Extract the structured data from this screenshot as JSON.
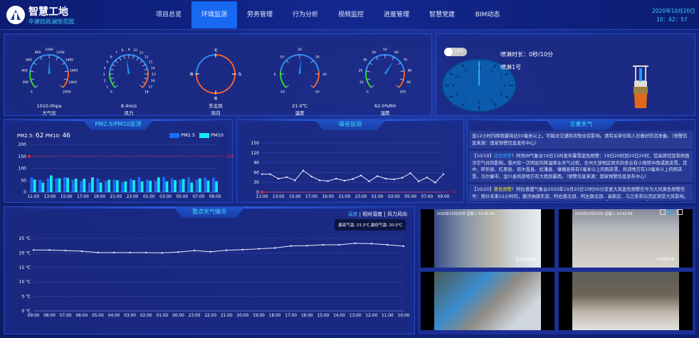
{
  "header": {
    "title": "智慧工地",
    "subtitle": "中建四局澜悦花园",
    "date": "2020年10月20日",
    "time": "10：42：57",
    "nav": [
      {
        "label": "项目总览"
      },
      {
        "label": "环境监测",
        "active": true
      },
      {
        "label": "劳务管理"
      },
      {
        "label": "行为分析"
      },
      {
        "label": "视频监控"
      },
      {
        "label": "进度管理"
      },
      {
        "label": "智慧党建"
      },
      {
        "label": "BIM动态"
      }
    ]
  },
  "gauges": [
    {
      "value_text": "1010.0hpa",
      "label": "大气压",
      "min": 0,
      "max": 2000,
      "value": 1010,
      "ticks": [
        "0",
        "200",
        "400",
        "600",
        "800",
        "1000",
        "1200",
        "1400",
        "1600",
        "1800",
        "2000"
      ]
    },
    {
      "value_text": "8.4m/s",
      "label": "风力",
      "min": 0,
      "max": 18,
      "value": 8.4,
      "ticks": [
        "0",
        "1",
        "2",
        "3",
        "4",
        "5",
        "6",
        "7",
        "8",
        "9",
        "10",
        "11",
        "12",
        "13",
        "14",
        "15",
        "16",
        "17",
        "18"
      ]
    },
    {
      "value_text": "东北风",
      "label": "风向",
      "compass": true,
      "value": 45,
      "ticks": [
        "北",
        "东",
        "南",
        "西"
      ]
    },
    {
      "value_text": "21.0℃",
      "label": "温度",
      "min": -10,
      "max": 50,
      "value": 21,
      "ticks": [
        "-10",
        "0",
        "10",
        "20",
        "30",
        "40",
        "50"
      ]
    },
    {
      "value_text": "62.0%RH",
      "label": "湿度",
      "min": 0,
      "max": 100,
      "value": 62,
      "ticks": [
        "0",
        "10",
        "20",
        "30",
        "40",
        "50",
        "60",
        "70",
        "80",
        "90",
        "100"
      ]
    }
  ],
  "gauge_colors": {
    "low": "#2bd92b",
    "mid": "#2f8cf0",
    "high": "#f0602a",
    "needle": "#1e8fff"
  },
  "sprinkler": {
    "toggle": "OFF",
    "duration": "喷淋时长：0秒/10分",
    "name": "喷淋1号",
    "dial_ticks": [
      "12",
      "1",
      "2",
      "3",
      "4",
      "5",
      "6",
      "7",
      "8",
      "9",
      "10",
      "11"
    ]
  },
  "pm": {
    "title": "PM2.5/PM10监测",
    "readout_pm25_label": "PM2.5:",
    "readout_pm25": "62",
    "readout_pm10_label": "PM10:",
    "readout_pm10": "46",
    "chart_data": {
      "type": "bar",
      "categories": [
        "11:00",
        "12:00",
        "13:00",
        "14:00",
        "15:00",
        "16:00",
        "17:00",
        "18:00",
        "19:00",
        "20:00",
        "21:00",
        "22:00",
        "23:00",
        "00:00",
        "01:00",
        "02:00",
        "03:00",
        "04:00",
        "05:00",
        "06:00",
        "07:00",
        "08:00",
        "09:00"
      ],
      "tick_labels": [
        "11:00",
        "13:00",
        "15:00",
        "17:00",
        "19:00",
        "21:00",
        "23:00",
        "01:00",
        "03:00",
        "05:00",
        "07:00",
        "09:00"
      ],
      "series": [
        {
          "name": "PM2.5",
          "color": "#1a6cf5",
          "values": [
            62,
            50,
            58,
            58,
            63,
            52,
            45,
            40,
            58,
            46,
            52,
            42,
            55,
            63,
            52,
            46,
            64,
            58,
            52,
            62,
            52,
            61,
            61
          ]
        },
        {
          "name": "PM10",
          "color": "#13eaf5",
          "values": [
            53,
            40,
            70,
            58,
            60,
            57,
            56,
            62,
            40,
            52,
            50,
            45,
            50,
            45,
            47,
            62,
            45,
            50,
            55,
            40,
            58,
            48,
            45
          ]
        }
      ],
      "ylim": [
        0,
        200
      ],
      "yticks": [
        0,
        50,
        100,
        150,
        200
      ],
      "threshold": 150,
      "threshold_label": "150",
      "legend": "top-right"
    }
  },
  "noise": {
    "title": "噪音监测",
    "chart_data": {
      "type": "line",
      "categories": [
        "11:00",
        "12:00",
        "13:00",
        "14:00",
        "15:00",
        "16:00",
        "17:00",
        "18:00",
        "19:00",
        "20:00",
        "21:00",
        "22:00",
        "23:00",
        "00:00",
        "01:00",
        "02:00",
        "03:00",
        "04:00",
        "05:00",
        "06:00",
        "07:00",
        "08:00",
        "09:00"
      ],
      "tick_labels": [
        "11:00",
        "13:00",
        "15:00",
        "17:00",
        "19:00",
        "21:00",
        "23:00",
        "01:00",
        "03:00",
        "05:00",
        "07:00",
        "09:00"
      ],
      "values": [
        55,
        55,
        41,
        46,
        36,
        66,
        48,
        36,
        34,
        41,
        35,
        40,
        51,
        33,
        49,
        41,
        39,
        44,
        58,
        33,
        45,
        29,
        55
      ],
      "ylim": [
        0,
        150
      ],
      "yticks": [
        0,
        30,
        60,
        90,
        120,
        150
      ],
      "threshold": 0,
      "threshold_label": "0"
    }
  },
  "warnings": {
    "title": "灾害天气",
    "items": [
      {
        "text": "选12小时内降雨量将达50毫米以上，可能对交通和农牧业有影响。请有关单位和人员做好防范准备。（预警信息来源：国家预警信息发布中心）"
      },
      {
        "date": "【10/19】",
        "level": "蓝色预警",
        "level_color": "#2fa8ff",
        "text": "阿坝州气象台19日15时发布暴雪蓝色预警：19日20时到20日20时，受高原切变和地面冷空气共同影响，我州有一次明显的降温降水天气过程，全州大部地区阴天间多云有小雨转中雨或雨夹雪，其中，阿坝县、红原县、若尔盖县、松潘县、壤塘县将有5毫米以上的雨夹雪，局部地方有10毫米以上的雨夹雪，马尔康市、金川县局部地方有大雨到暴雨。（预警信息来源：国家预警信息发布中心）"
      },
      {
        "date": "【10/20】",
        "level": "黄色预警",
        "level_color": "#f5e22a",
        "text": "阿拉善盟气象台2020年10月20日10时00分变更大风蓝色预警信号为大风黄色预警信号：预计未来12小时内，额济纳旗东部、阿右旗北部、阿左旗北部、高新区、乌兰布和示范区将受大风影响，平均风力8级以上，阵风可达9级以上，伴有扬沙。请注意防范。（预警信息来源：国家预警信息发布中心）"
      },
      {
        "date": "【10/20】",
        "level": "蓝色预警",
        "level_color": "#2fa8ff",
        "text": "北海市气象台20日10时00分继续发布大风蓝色预警信号：受冷空气影响，预计未来24小时北"
      }
    ]
  },
  "weather": {
    "title": "整点天气情况",
    "tabs": [
      {
        "label": "温度",
        "active": true
      },
      {
        "label": "相对湿度"
      },
      {
        "label": "风力风向"
      }
    ],
    "summary": "最高气温: 23.3℃,最低气温: 20.0℃",
    "chart_data": {
      "type": "line",
      "categories": [
        "09:00",
        "08:00",
        "07:00",
        "06:00",
        "05:00",
        "04:00",
        "03:00",
        "02:00",
        "01:00",
        "00:00",
        "23:00",
        "22:00",
        "21:00",
        "20:00",
        "19:00",
        "18:00",
        "17:00",
        "16:00",
        "15:00",
        "14:00",
        "13:00",
        "12:00",
        "11:00",
        "10:00"
      ],
      "values": [
        21,
        21,
        20.8,
        20.6,
        20.1,
        20.1,
        20.1,
        20.1,
        20,
        20.3,
        20.8,
        20.4,
        20.9,
        21.1,
        21.4,
        21.7,
        22.4,
        22.5,
        22.8,
        22.8,
        23.3,
        23.2,
        22.8,
        22.3
      ],
      "ylim": [
        0,
        25
      ],
      "yticks": [
        "0 ℃",
        "5 ℃",
        "10 ℃",
        "15 ℃",
        "20 ℃",
        "25 ℃"
      ],
      "ytick_values": [
        0,
        5,
        10,
        15,
        20,
        25
      ]
    }
  },
  "cameras": {
    "layout_icons": [
      "single-view-icon",
      "quad-view-icon",
      "split-view-icon"
    ],
    "feeds": [
      {
        "timestamp": "2020年10月20日 星期二 10:42:56",
        "label": "生活区通道2"
      },
      {
        "timestamp": "2020年10月20日 星期二 10:42:56",
        "label": "公司停车场"
      },
      {
        "timestamp": "",
        "label": ""
      },
      {
        "timestamp": "",
        "label": ""
      }
    ]
  }
}
